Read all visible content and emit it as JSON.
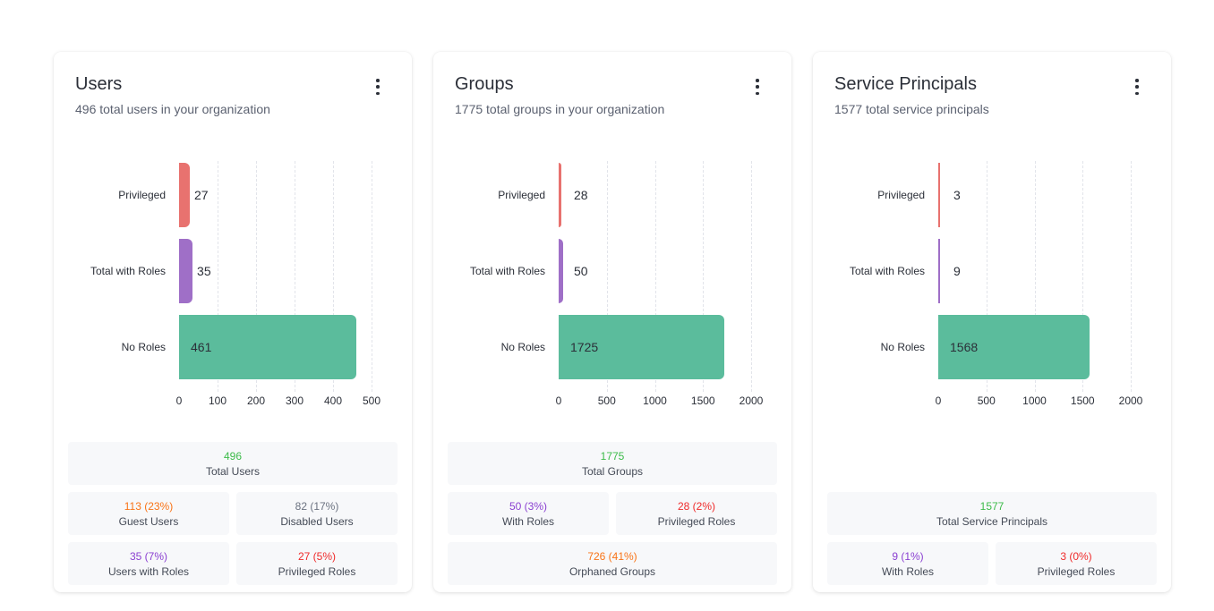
{
  "cards": [
    {
      "title": "Users",
      "subtitle": "496 total users in your organization",
      "chart_data": {
        "type": "bar",
        "orientation": "horizontal",
        "categories": [
          "Privileged",
          "Total with Roles",
          "No Roles"
        ],
        "values": [
          27,
          35,
          461
        ],
        "colors": [
          "#e8726f",
          "#9f6fc7",
          "#5bbc9c"
        ],
        "xlim": [
          0,
          500
        ],
        "ticks": [
          "0",
          "100",
          "200",
          "300",
          "400",
          "500"
        ],
        "grid": true
      },
      "stats": [
        [
          {
            "value": "496",
            "label": "Total Users",
            "color": "#3dbb4a"
          }
        ],
        [
          {
            "value": "113 (23%)",
            "label": "Guest Users",
            "color": "#f97316"
          },
          {
            "value": "82 (17%)",
            "label": "Disabled Users",
            "color": "#6b7280"
          }
        ],
        [
          {
            "value": "35 (7%)",
            "label": "Users with Roles",
            "color": "#8a3fd1"
          },
          {
            "value": "27 (5%)",
            "label": "Privileged Roles",
            "color": "#ef2b2b"
          }
        ]
      ]
    },
    {
      "title": "Groups",
      "subtitle": "1775 total groups in your organization",
      "chart_data": {
        "type": "bar",
        "orientation": "horizontal",
        "categories": [
          "Privileged",
          "Total with Roles",
          "No Roles"
        ],
        "values": [
          28,
          50,
          1725
        ],
        "colors": [
          "#e8726f",
          "#9f6fc7",
          "#5bbc9c"
        ],
        "xlim": [
          0,
          2000
        ],
        "ticks": [
          "0",
          "500",
          "1000",
          "1500",
          "2000"
        ],
        "grid": true
      },
      "stats": [
        [
          {
            "value": "1775",
            "label": "Total Groups",
            "color": "#3dbb4a"
          }
        ],
        [
          {
            "value": "50 (3%)",
            "label": "With Roles",
            "color": "#8a3fd1"
          },
          {
            "value": "28 (2%)",
            "label": "Privileged Roles",
            "color": "#ef2b2b"
          }
        ],
        [
          {
            "value": "726 (41%)",
            "label": "Orphaned Groups",
            "color": "#f97316"
          }
        ]
      ]
    },
    {
      "title": "Service Principals",
      "subtitle": "1577 total service principals",
      "chart_data": {
        "type": "bar",
        "orientation": "horizontal",
        "categories": [
          "Privileged",
          "Total with Roles",
          "No Roles"
        ],
        "values": [
          3,
          9,
          1568
        ],
        "colors": [
          "#e8726f",
          "#9f6fc7",
          "#5bbc9c"
        ],
        "xlim": [
          0,
          2000
        ],
        "ticks": [
          "0",
          "500",
          "1000",
          "1500",
          "2000"
        ],
        "grid": true
      },
      "stats": [
        [
          {
            "value": "1577",
            "label": "Total Service Principals",
            "color": "#3dbb4a"
          }
        ],
        [
          {
            "value": "9 (1%)",
            "label": "With Roles",
            "color": "#8a3fd1"
          },
          {
            "value": "3 (0%)",
            "label": "Privileged Roles",
            "color": "#ef2b2b"
          }
        ]
      ]
    }
  ]
}
